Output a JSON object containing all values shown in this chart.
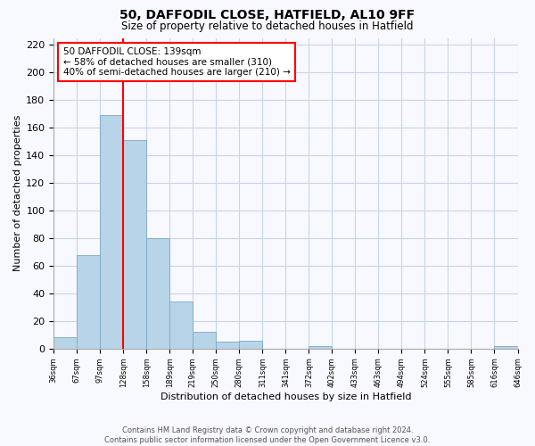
{
  "title": "50, DAFFODIL CLOSE, HATFIELD, AL10 9FF",
  "subtitle": "Size of property relative to detached houses in Hatfield",
  "xlabel": "Distribution of detached houses by size in Hatfield",
  "ylabel": "Number of detached properties",
  "footer_line1": "Contains HM Land Registry data © Crown copyright and database right 2024.",
  "footer_line2": "Contains public sector information licensed under the Open Government Licence v3.0.",
  "bin_labels": [
    "36sqm",
    "67sqm",
    "97sqm",
    "128sqm",
    "158sqm",
    "189sqm",
    "219sqm",
    "250sqm",
    "280sqm",
    "311sqm",
    "341sqm",
    "372sqm",
    "402sqm",
    "433sqm",
    "463sqm",
    "494sqm",
    "524sqm",
    "555sqm",
    "585sqm",
    "616sqm",
    "646sqm"
  ],
  "bar_values": [
    8,
    68,
    169,
    151,
    80,
    34,
    12,
    5,
    6,
    0,
    0,
    2,
    0,
    0,
    0,
    0,
    0,
    0,
    0,
    2
  ],
  "bar_color": "#b8d4e8",
  "bar_edgecolor": "#7aaac8",
  "vline_color": "red",
  "annotation_title": "50 DAFFODIL CLOSE: 139sqm",
  "annotation_line1": "← 58% of detached houses are smaller (310)",
  "annotation_line2": "40% of semi-detached houses are larger (210) →",
  "annotation_box_edgecolor": "red",
  "ylim": [
    0,
    225
  ],
  "yticks": [
    0,
    20,
    40,
    60,
    80,
    100,
    120,
    140,
    160,
    180,
    200,
    220
  ],
  "background_color": "#f8f8ff",
  "grid_color": "#c8d4e8"
}
